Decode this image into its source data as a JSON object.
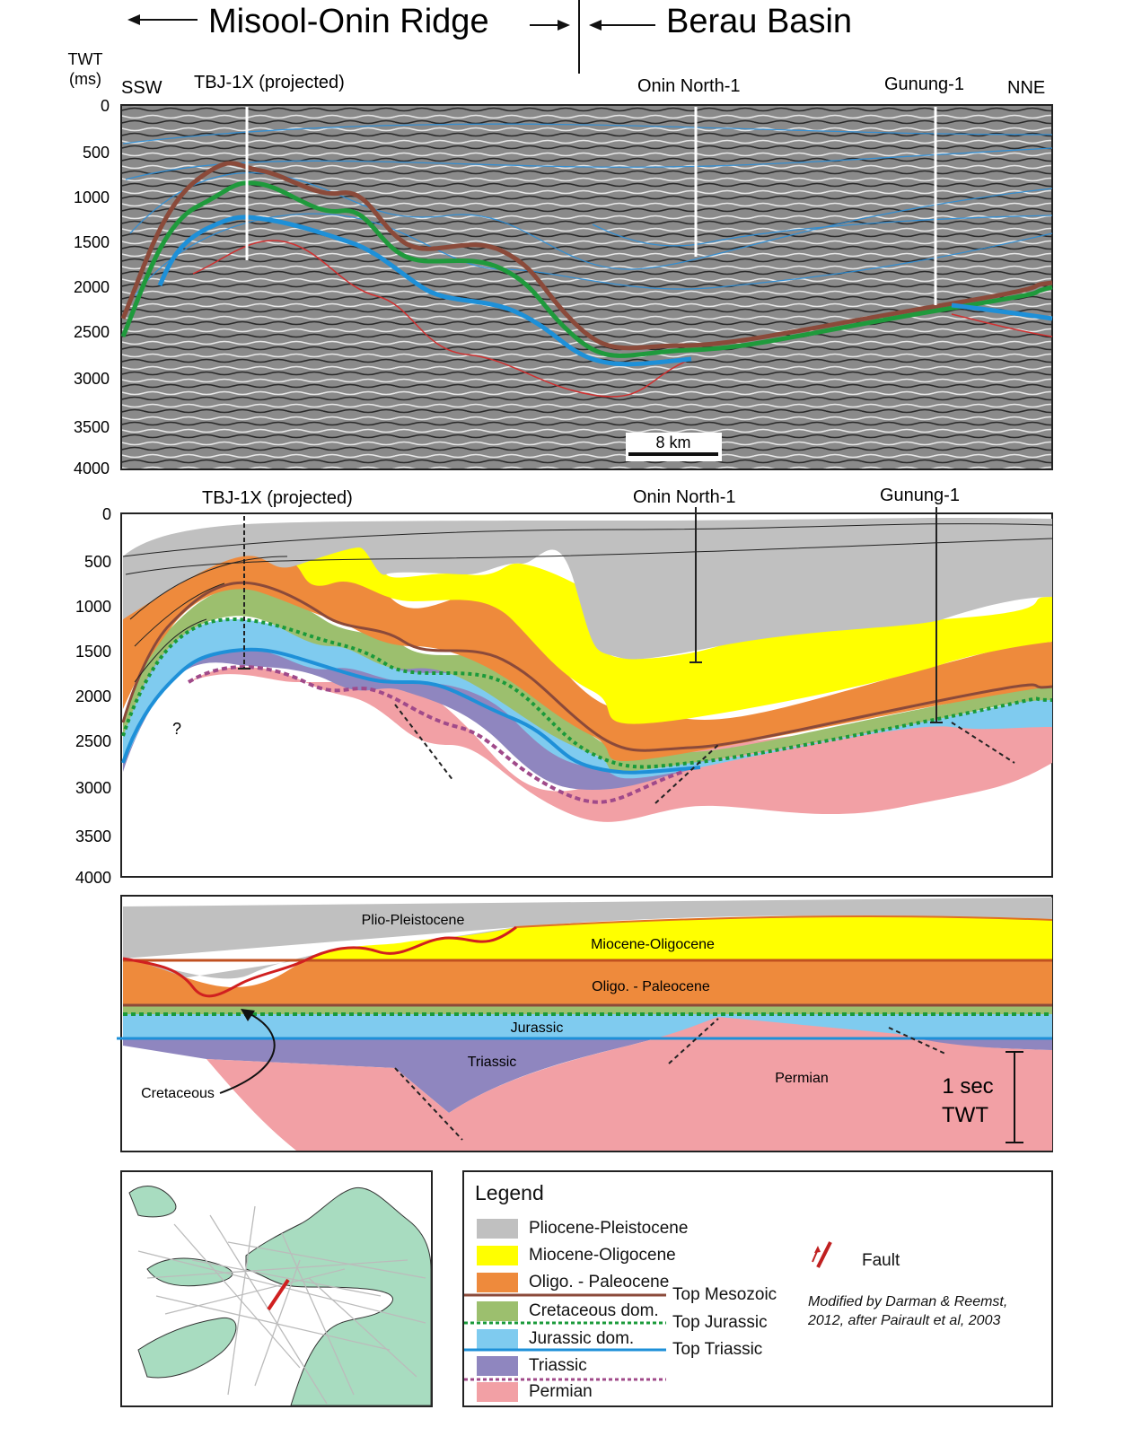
{
  "header": {
    "left_region": "Misool-Onin Ridge",
    "right_region": "Berau Basin"
  },
  "axis": {
    "label_line1": "TWT",
    "label_line2": "(ms)",
    "ticks": [
      "0",
      "500",
      "1000",
      "1500",
      "2000",
      "2500",
      "3000",
      "3500",
      "4000"
    ]
  },
  "seismic": {
    "dir_left": "SSW",
    "dir_right": "NNE",
    "wells": [
      "TBJ-1X (projected)",
      "Onin North-1",
      "Gunung-1"
    ],
    "scale_label": "8 km"
  },
  "interp": {
    "wells": [
      "TBJ-1X (projected)",
      "Onin North-1",
      "Gunung-1"
    ],
    "question_mark": "?"
  },
  "restored": {
    "labels": {
      "plio": "Plio-Pleistocene",
      "mio": "Miocene-Oligocene",
      "oligo": "Oligo. - Paleocene",
      "jurassic": "Jurassic",
      "triassic": "Triassic",
      "permian": "Permian",
      "cretaceous": "Cretaceous"
    },
    "scale_line1": "1 sec",
    "scale_line2": "TWT"
  },
  "legend": {
    "title": "Legend",
    "units": [
      {
        "label": "Pliocene-Pleistocene",
        "color": "#c0c0c0"
      },
      {
        "label": "Miocene-Oligocene",
        "color": "#ffff00"
      },
      {
        "label": "Oligo. - Paleocene",
        "color": "#ee8a3c"
      },
      {
        "label": "Cretaceous dom.",
        "color": "#9cbf6e"
      },
      {
        "label": "Jurassic dom.",
        "color": "#7fcbef"
      },
      {
        "label": "Triassic",
        "color": "#8f86bf"
      },
      {
        "label": "Permian",
        "color": "#f2a0a5"
      }
    ],
    "horizons": [
      {
        "label": "Top Mesozoic",
        "color": "#8b4a3a"
      },
      {
        "label": "Top Jurassic",
        "color": "#1a9a3a"
      },
      {
        "label": "Top Triassic",
        "color": "#1e90d8"
      }
    ],
    "fault_label": "Fault",
    "credit_line1": "Modified by Darman & Reemst,",
    "credit_line2": "2012, after Pairault et al, 2003"
  }
}
